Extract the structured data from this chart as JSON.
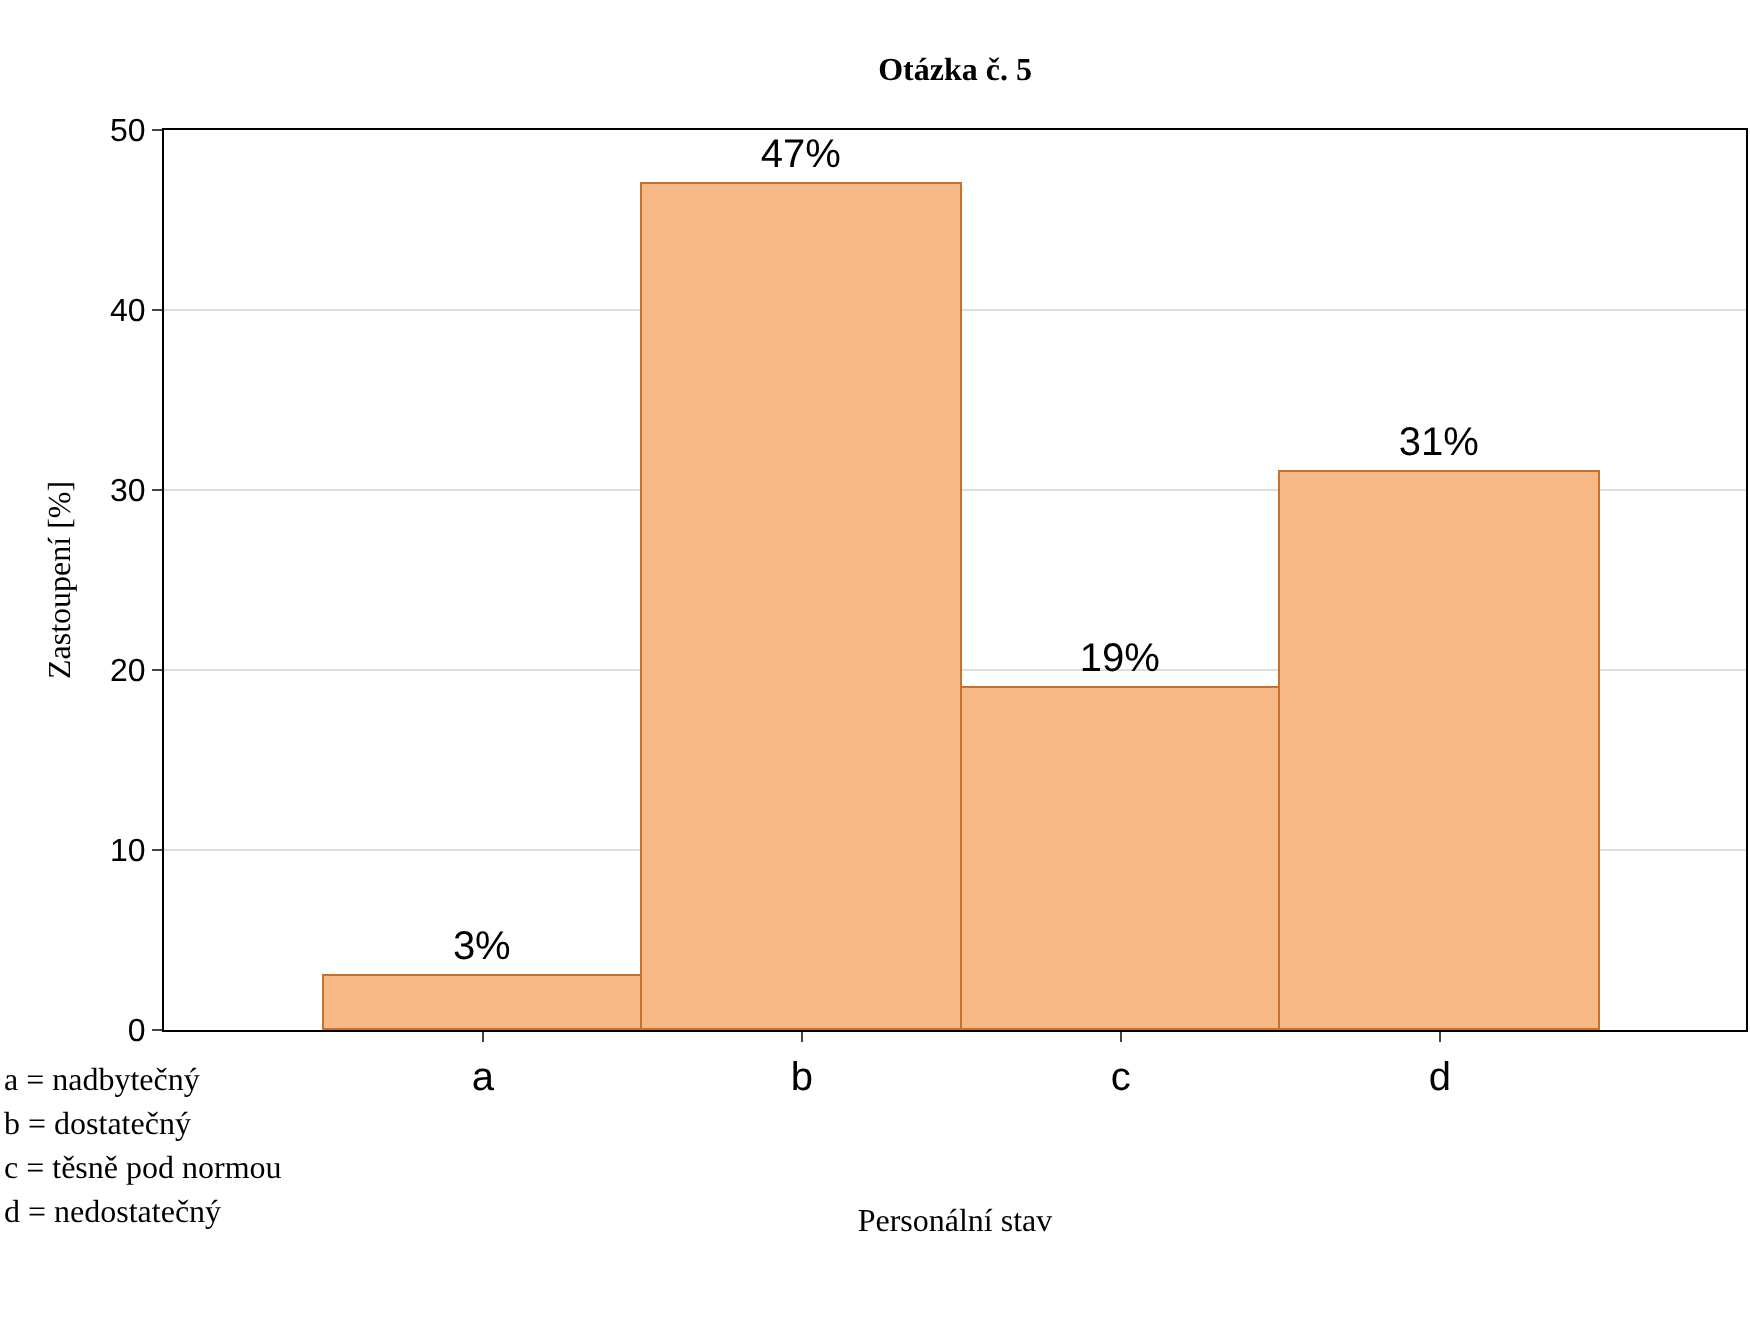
{
  "chart_data": {
    "type": "bar",
    "title": "Otázka č. 5",
    "xlabel": "Personální stav",
    "ylabel": "Zastoupení [%]",
    "categories": [
      "a",
      "b",
      "c",
      "d"
    ],
    "values": [
      3,
      47,
      19,
      31
    ],
    "value_labels": [
      "3%",
      "47%",
      "19%",
      "31%"
    ],
    "color": "#f9b987",
    "ylim": [
      0,
      50
    ],
    "yticks": [
      0,
      10,
      20,
      30,
      40,
      50
    ],
    "grid": "y",
    "legend": false,
    "annotations": [
      "a = nadbytečný",
      "b = dostatečný",
      "c = těsně pod normou",
      "d = nedostatečný"
    ]
  }
}
